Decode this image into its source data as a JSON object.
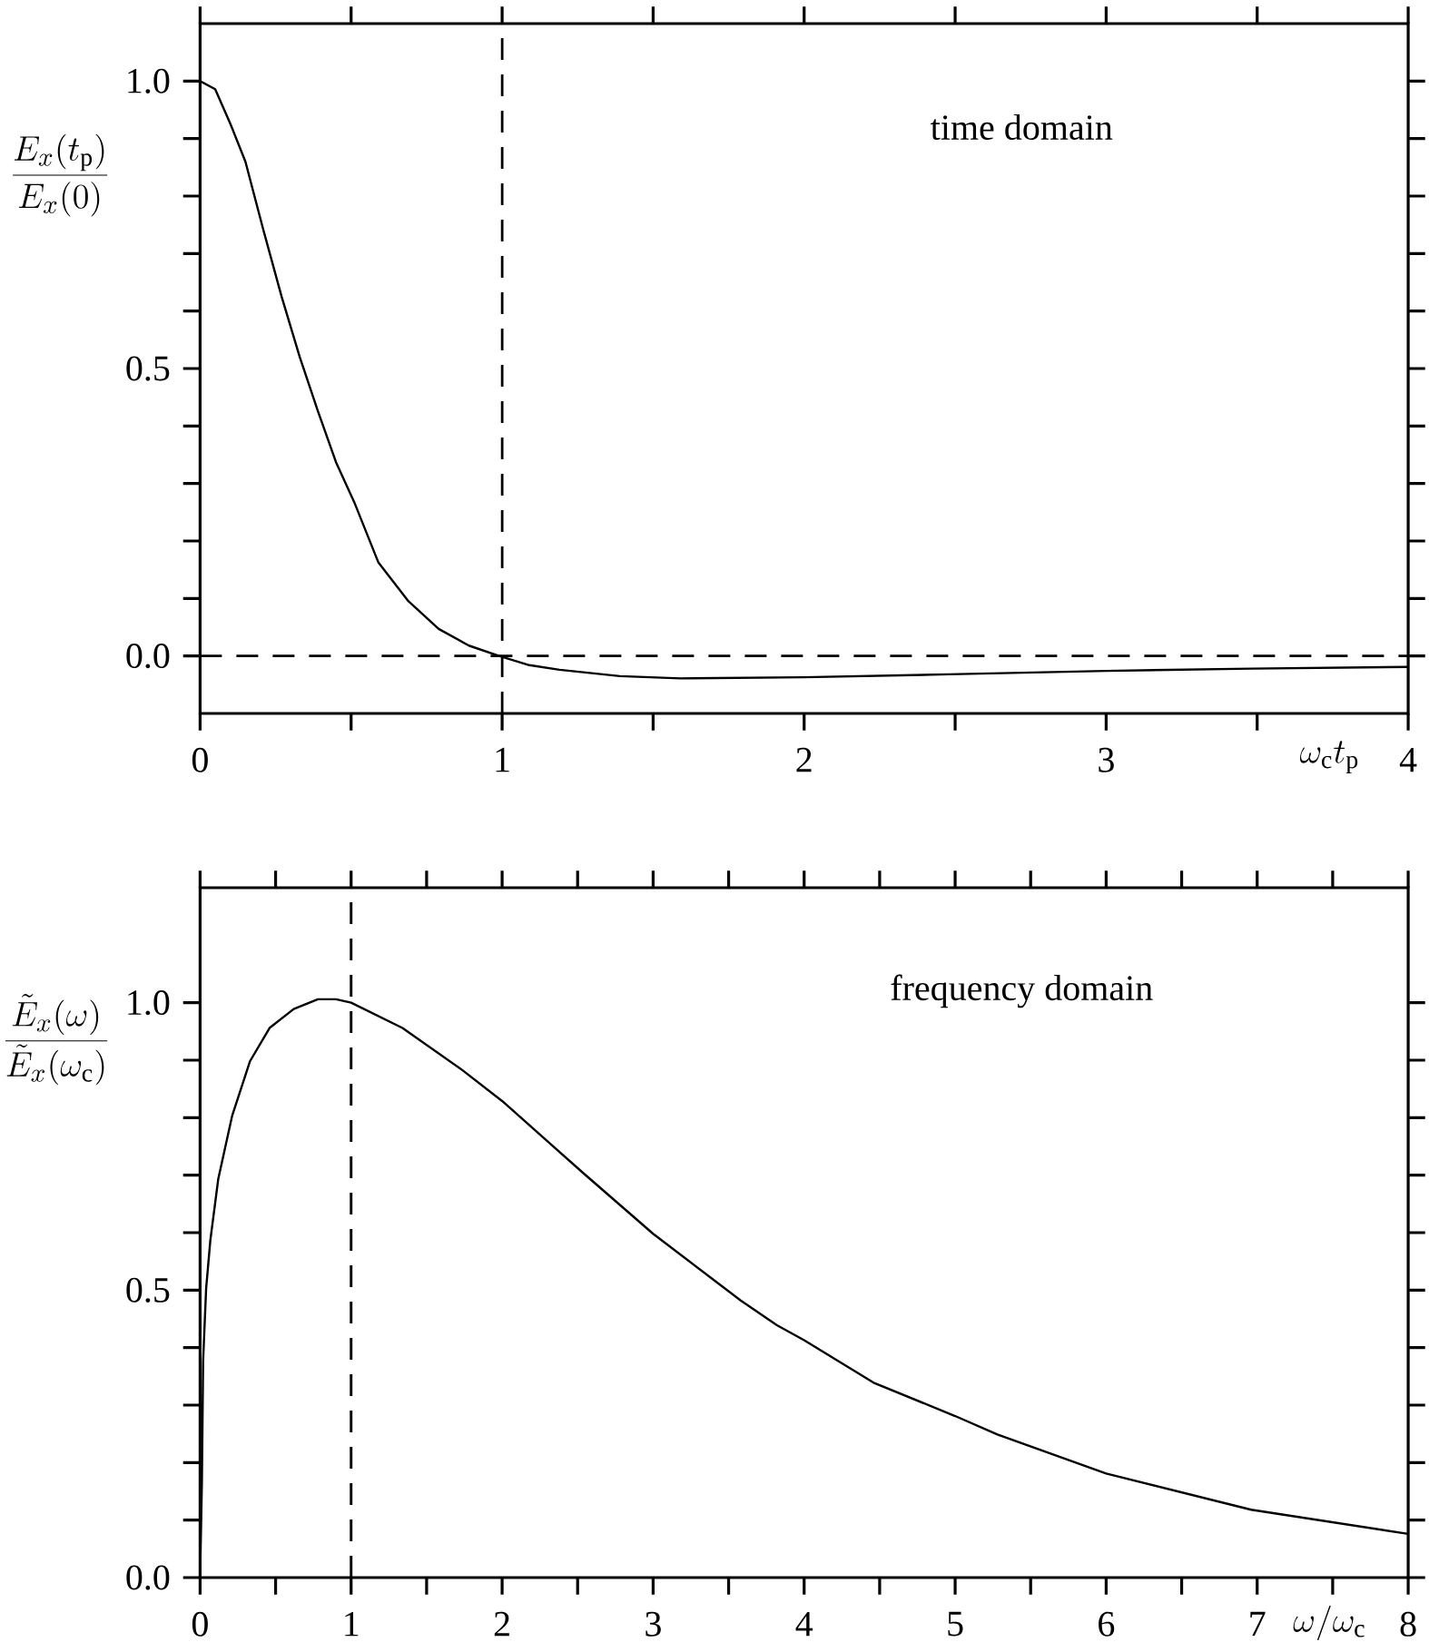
{
  "chart_data": [
    {
      "type": "line",
      "ylabel": "\\frac{E_x(t_\\mathrm{p})}{E_x(0)}",
      "xlabel": "\\omega_\\mathrm{c}t_\\mathrm{p}",
      "annotations": [
        "time domain"
      ],
      "xlim": [
        0,
        4
      ],
      "ylim": [
        -0.1,
        1.1
      ],
      "xticks": [
        0,
        1,
        2,
        3,
        4
      ],
      "yticks": [
        {
          "value": 0,
          "label": "0.0"
        },
        {
          "value": 0.5,
          "label": "0.5"
        },
        {
          "value": 1,
          "label": "1.0"
        }
      ],
      "color": "#000000",
      "x": [
        0,
        0.05,
        0.1,
        0.15,
        0.21,
        0.27,
        0.33,
        0.39,
        0.45,
        0.51,
        0.59,
        0.69,
        0.79,
        0.89,
        0.99,
        1.09,
        1.19,
        1.39,
        1.59,
        2.0,
        2.48,
        3.0,
        3.48,
        4.0
      ],
      "values": [
        1.0,
        0.986,
        0.926,
        0.86,
        0.74,
        0.625,
        0.52,
        0.426,
        0.337,
        0.268,
        0.163,
        0.095,
        0.047,
        0.018,
        0.0,
        -0.016,
        -0.024,
        -0.035,
        -0.039,
        -0.037,
        -0.032,
        -0.026,
        -0.022,
        -0.019
      ],
      "ref_lines": [
        {
          "axis": "x",
          "value": 1,
          "line_style": "dashed"
        },
        {
          "axis": "y",
          "value": 0,
          "line_style": "dashed"
        }
      ]
    },
    {
      "type": "line",
      "ylabel": "\\frac{\\tilde{E}_x(\\omega)}{\\tilde{E}_x(\\omega_\\mathrm{c})}",
      "xlabel": "\\omega/\\omega_\\mathrm{c}",
      "annotations": [
        "frequency domain"
      ],
      "xlim": [
        0,
        8
      ],
      "ylim": [
        0,
        1.2
      ],
      "xticks": [
        0,
        1,
        2,
        3,
        4,
        5,
        6,
        7,
        8
      ],
      "yticks": [
        {
          "value": 0,
          "label": "0.0"
        },
        {
          "value": 0.5,
          "label": "0.5"
        },
        {
          "value": 1,
          "label": "1.0"
        }
      ],
      "color": "#000000",
      "x": [
        0,
        0.012,
        0.02,
        0.04,
        0.068,
        0.12,
        0.212,
        0.33,
        0.46,
        0.62,
        0.78,
        0.9,
        1.0,
        1.34,
        1.74,
        2.0,
        2.54,
        3.0,
        3.58,
        3.82,
        4.0,
        4.46,
        5.0,
        5.28,
        6.0,
        6.96,
        8.0
      ],
      "values": [
        0,
        0.166,
        0.377,
        0.503,
        0.587,
        0.693,
        0.803,
        0.898,
        0.956,
        0.989,
        1.006,
        1.006,
        1.0,
        0.956,
        0.882,
        0.829,
        0.703,
        0.598,
        0.482,
        0.439,
        0.413,
        0.339,
        0.281,
        0.249,
        0.181,
        0.118,
        0.076
      ],
      "ref_lines": [
        {
          "axis": "x",
          "value": 1,
          "line_style": "dashed"
        }
      ]
    }
  ]
}
